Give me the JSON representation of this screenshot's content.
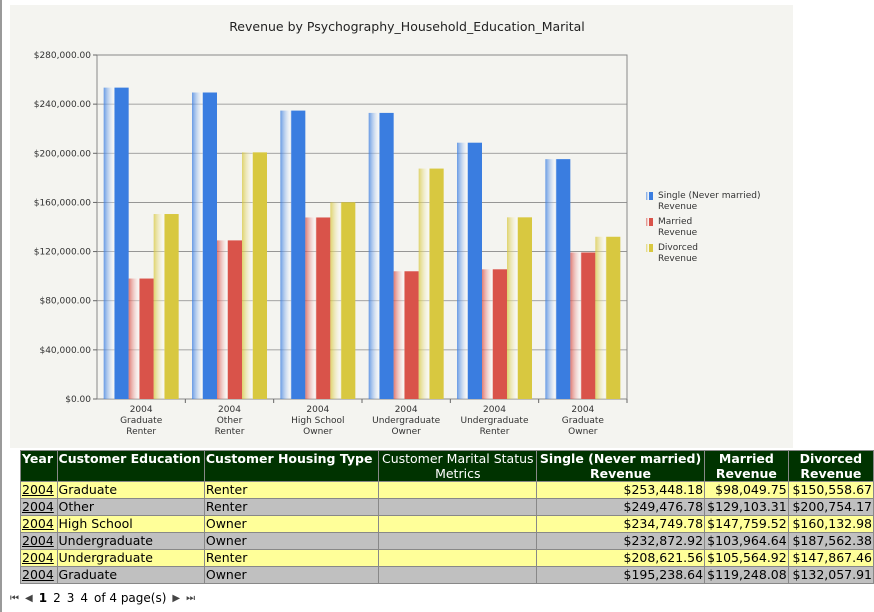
{
  "chart_data": {
    "type": "bar",
    "title": "Revenue by Psychography_Household_Education_Marital",
    "categories": [
      [
        "2004",
        "Graduate",
        "Renter"
      ],
      [
        "2004",
        "Other",
        "Renter"
      ],
      [
        "2004",
        "High School",
        "Owner"
      ],
      [
        "2004",
        "Undergraduate",
        "Owner"
      ],
      [
        "2004",
        "Undergraduate",
        "Renter"
      ],
      [
        "2004",
        "Graduate",
        "Owner"
      ]
    ],
    "series": [
      {
        "name": "Single (Never married) Revenue",
        "legend": [
          "Single (Never married)",
          "Revenue"
        ],
        "color": "#3a7de0",
        "values": [
          253448.18,
          249476.78,
          234749.78,
          232872.92,
          208621.56,
          195238.64
        ]
      },
      {
        "name": "Married Revenue",
        "legend": [
          "Married",
          "Revenue"
        ],
        "color": "#d9534a",
        "values": [
          98049.75,
          129103.31,
          147759.52,
          103964.64,
          105564.92,
          119248.08
        ]
      },
      {
        "name": "Divorced Revenue",
        "legend": [
          "Divorced",
          "Revenue"
        ],
        "color": "#d8c840",
        "values": [
          150558.67,
          200754.17,
          160132.98,
          187562.38,
          147867.46,
          132057.91
        ]
      }
    ],
    "ylim": [
      0,
      280000
    ],
    "yticks": [
      "$0.00",
      "$40,000.00",
      "$80,000.00",
      "$120,000.00",
      "$160,000.00",
      "$200,000.00",
      "$240,000.00",
      "$280,000.00"
    ],
    "ytick_values": [
      0,
      40000,
      80000,
      120000,
      160000,
      200000,
      240000,
      280000
    ],
    "grid": true,
    "legend": "right"
  },
  "table": {
    "headers": [
      "Year",
      "Customer Education",
      "Customer Housing Type",
      "Customer Marital Status",
      "Single (Never married)",
      "Married",
      "Divorced"
    ],
    "subheaders": [
      "Metrics",
      "Revenue",
      "Revenue",
      "Revenue"
    ],
    "rows": [
      [
        "2004",
        "Graduate",
        "Renter",
        "",
        "$253,448.18",
        "$98,049.75",
        "$150,558.67"
      ],
      [
        "2004",
        "Other",
        "Renter",
        "",
        "$249,476.78",
        "$129,103.31",
        "$200,754.17"
      ],
      [
        "2004",
        "High School",
        "Owner",
        "",
        "$234,749.78",
        "$147,759.52",
        "$160,132.98"
      ],
      [
        "2004",
        "Undergraduate",
        "Owner",
        "",
        "$232,872.92",
        "$103,964.64",
        "$187,562.38"
      ],
      [
        "2004",
        "Undergraduate",
        "Renter",
        "",
        "$208,621.56",
        "$105,564.92",
        "$147,867.46"
      ],
      [
        "2004",
        "Graduate",
        "Owner",
        "",
        "$195,238.64",
        "$119,248.08",
        "$132,057.91"
      ]
    ]
  },
  "pager": {
    "first": "⏮",
    "prev": "◀",
    "pages": [
      "1",
      "2",
      "3",
      "4"
    ],
    "current": "1",
    "summary": "of 4 page(s)",
    "next": "▶",
    "last": "⏭"
  }
}
